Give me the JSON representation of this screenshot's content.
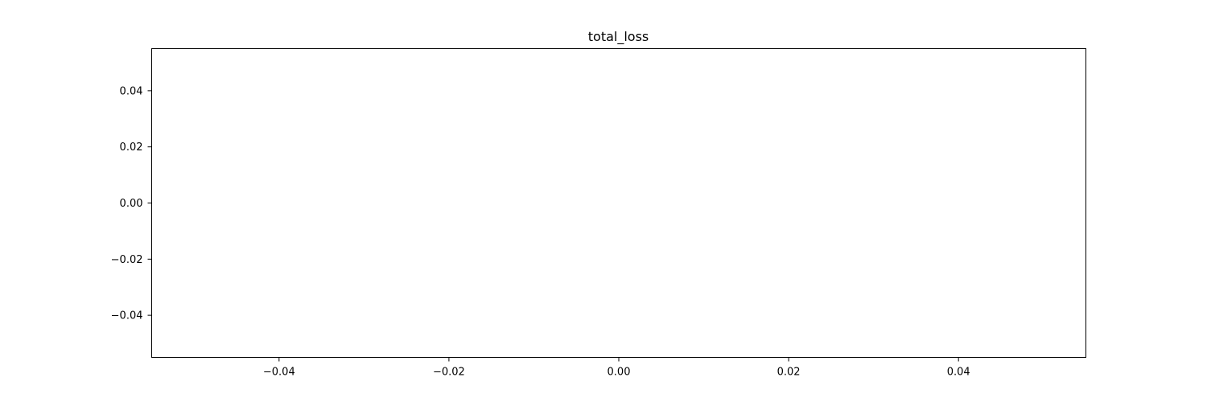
{
  "chart_data": {
    "type": "line",
    "title": "total_loss",
    "xlabel": "",
    "ylabel": "",
    "xlim": [
      -0.055,
      0.055
    ],
    "ylim": [
      -0.055,
      0.055
    ],
    "x_ticks": [
      -0.04,
      -0.02,
      0.0,
      0.02,
      0.04
    ],
    "x_tick_labels": [
      "−0.04",
      "−0.02",
      "0.00",
      "0.02",
      "0.04"
    ],
    "y_ticks": [
      -0.04,
      -0.02,
      0.0,
      0.02,
      0.04
    ],
    "y_tick_labels": [
      "−0.04",
      "−0.02",
      "0.00",
      "0.02",
      "0.04"
    ],
    "grid": false,
    "series": [
      {
        "x": [],
        "y": []
      }
    ]
  }
}
